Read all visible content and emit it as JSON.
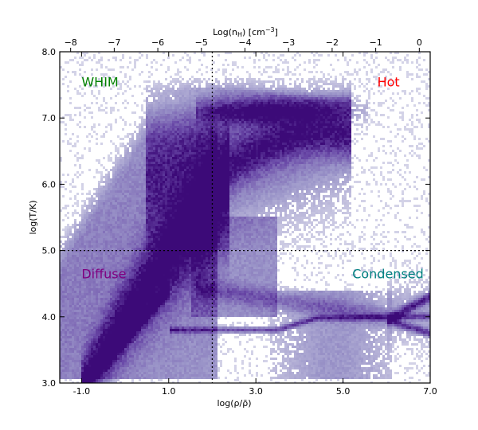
{
  "chart_data": {
    "type": "heatmap",
    "title": "",
    "xlabel": "log(ρ/ρ̄)",
    "ylabel": "log(T/K)",
    "x2label_prefix": "Log(n",
    "x2label_sub": "H",
    "x2label_mid": ") [cm",
    "x2label_sup": "−3",
    "x2label_suffix": "]",
    "xlim": [
      -1.5,
      7.0
    ],
    "ylim": [
      3.0,
      8.0
    ],
    "x2lim": [
      -8.25,
      0.25
    ],
    "xticks": [
      {
        "value": -1.0,
        "label": "-1.0"
      },
      {
        "value": 1.0,
        "label": "1.0"
      },
      {
        "value": 3.0,
        "label": "3.0"
      },
      {
        "value": 5.0,
        "label": "5.0"
      },
      {
        "value": 7.0,
        "label": "7.0"
      }
    ],
    "yticks": [
      {
        "value": 3.0,
        "label": "3.0"
      },
      {
        "value": 4.0,
        "label": "4.0"
      },
      {
        "value": 5.0,
        "label": "5.0"
      },
      {
        "value": 6.0,
        "label": "6.0"
      },
      {
        "value": 7.0,
        "label": "7.0"
      },
      {
        "value": 8.0,
        "label": "8.0"
      }
    ],
    "x2ticks": [
      {
        "value": -8,
        "label": "−8"
      },
      {
        "value": -7,
        "label": "−7"
      },
      {
        "value": -6,
        "label": "−6"
      },
      {
        "value": -5,
        "label": "−5"
      },
      {
        "value": -4,
        "label": "−4"
      },
      {
        "value": -3,
        "label": "−3"
      },
      {
        "value": -2,
        "label": "−2"
      },
      {
        "value": -1,
        "label": "−1"
      },
      {
        "value": 0,
        "label": "0"
      }
    ],
    "divider_lines": {
      "density_x": 2.0,
      "temperature_y": 5.0
    },
    "regions": [
      {
        "label": "WHIM",
        "color": "#008000",
        "x": -1.0,
        "y": 7.55,
        "anchor": "start"
      },
      {
        "label": "Hot",
        "color": "#ff0000",
        "x": 6.3,
        "y": 7.55,
        "anchor": "end"
      },
      {
        "label": "Diffuse",
        "color": "#800080",
        "x": -1.0,
        "y": 4.65,
        "anchor": "start"
      },
      {
        "label": "Condensed",
        "color": "#008080",
        "x": 6.85,
        "y": 4.65,
        "anchor": "end"
      }
    ],
    "colormap": [
      "#dcdcec",
      "#9a94c8",
      "#6a4aa8",
      "#3c0a78"
    ],
    "grid": false,
    "legend": "none"
  }
}
